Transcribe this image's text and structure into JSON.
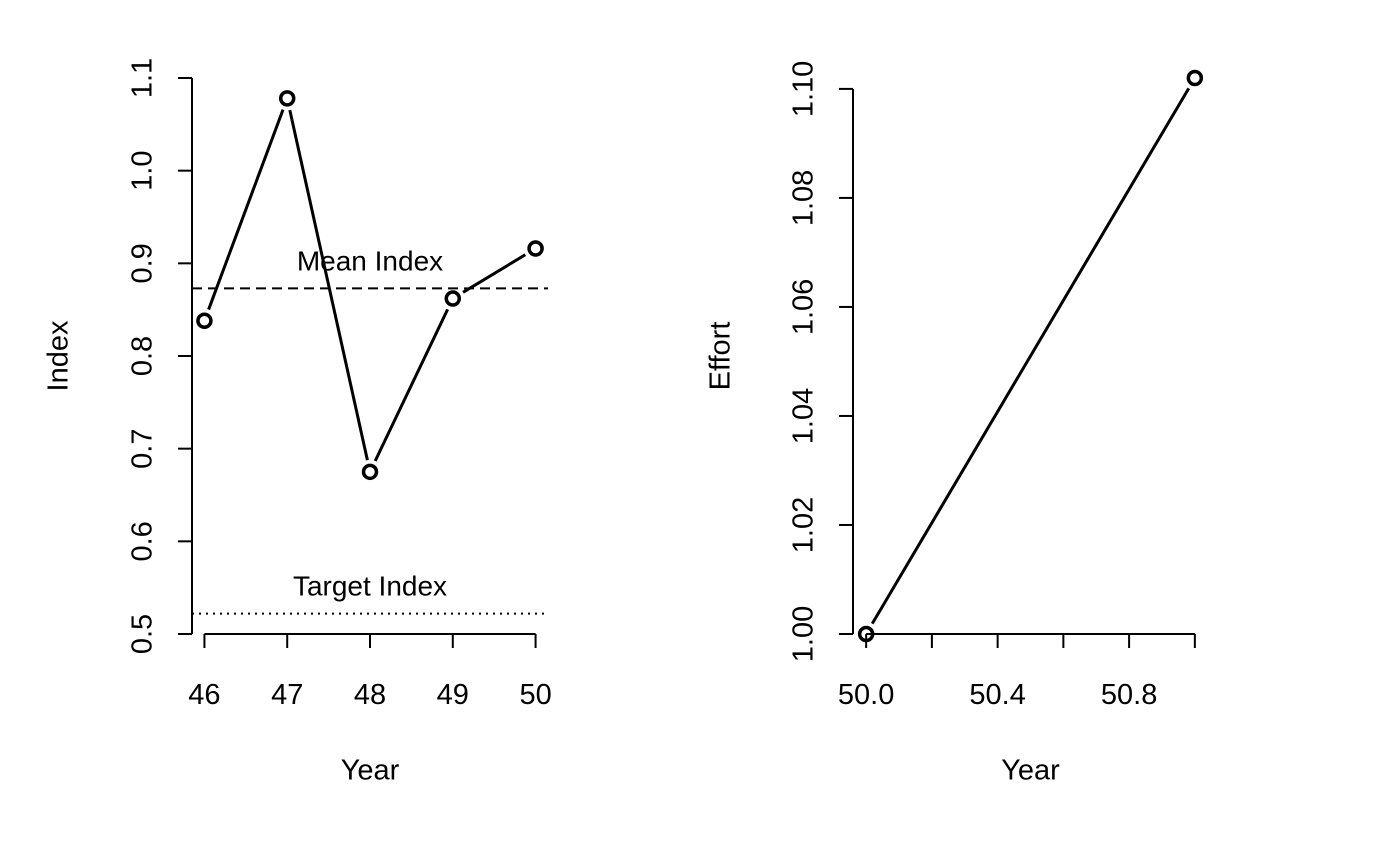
{
  "chart_data": [
    {
      "type": "line",
      "xlabel": "Year",
      "ylabel": "Index",
      "xlim": [
        45.85,
        50.15
      ],
      "ylim": [
        0.5,
        1.1
      ],
      "x_ticks": [
        46,
        47,
        48,
        49,
        50
      ],
      "x_tick_labels": [
        "46",
        "47",
        "48",
        "49",
        "50"
      ],
      "y_ticks": [
        0.5,
        0.6,
        0.7,
        0.8,
        0.9,
        1.0,
        1.1
      ],
      "y_tick_labels": [
        "0.5",
        "0.6",
        "0.7",
        "0.8",
        "0.9",
        "1.0",
        "1.1"
      ],
      "grid": false,
      "series": [
        {
          "x": [
            46,
            47,
            48,
            49,
            50
          ],
          "values": [
            0.838,
            1.078,
            0.675,
            0.862,
            0.916
          ],
          "color": "#000000"
        }
      ],
      "reference_lines": [
        {
          "y": 0.873,
          "style": "dashed",
          "label": "Mean Index"
        },
        {
          "y": 0.522,
          "style": "dotted",
          "label": "Target Index"
        }
      ]
    },
    {
      "type": "line",
      "xlabel": "Year",
      "ylabel": "Effort",
      "xlim": [
        49.96,
        51.04
      ],
      "ylim": [
        1.0,
        1.102
      ],
      "x_ticks": [
        50.0,
        50.2,
        50.4,
        50.6,
        50.8,
        51.0
      ],
      "x_tick_labels": [
        "50.0",
        "",
        "50.4",
        "",
        "50.8",
        ""
      ],
      "y_ticks": [
        1.0,
        1.02,
        1.04,
        1.06,
        1.08,
        1.1
      ],
      "y_tick_labels": [
        "1.00",
        "1.02",
        "1.04",
        "1.06",
        "1.08",
        "1.10"
      ],
      "grid": false,
      "series": [
        {
          "x": [
            50,
            51
          ],
          "values": [
            1.0,
            1.102
          ],
          "color": "#000000"
        }
      ],
      "reference_lines": []
    }
  ]
}
